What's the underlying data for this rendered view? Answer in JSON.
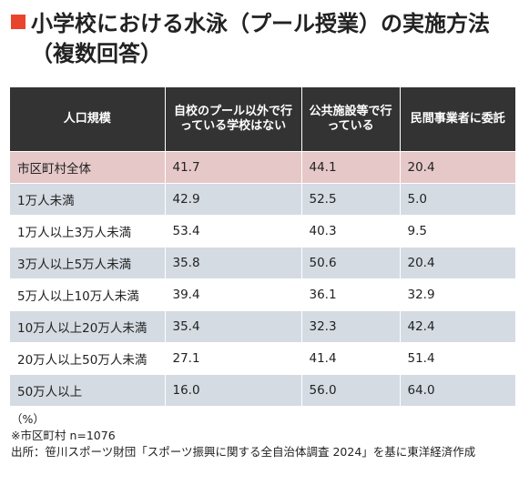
{
  "title": "小学校における水泳（プール授業）の実施方法（複数回答）",
  "columns": [
    "人口規模",
    "自校のプール以外で行っている学校はない",
    "公共施設等で行っている",
    "民間事業者に委託"
  ],
  "rows": [
    {
      "label": "市区町村全体",
      "values": [
        "41.7",
        "44.1",
        "20.4"
      ]
    },
    {
      "label": "1万人未満",
      "values": [
        "42.9",
        "52.5",
        "5.0"
      ]
    },
    {
      "label": "1万人以上3万人未満",
      "values": [
        "53.4",
        "40.3",
        "9.5"
      ]
    },
    {
      "label": "3万人以上5万人未満",
      "values": [
        "35.8",
        "50.6",
        "20.4"
      ]
    },
    {
      "label": "5万人以上10万人未満",
      "values": [
        "39.4",
        "36.1",
        "32.9"
      ]
    },
    {
      "label": "10万人以上20万人未満",
      "values": [
        "35.4",
        "32.3",
        "42.4"
      ]
    },
    {
      "label": "20万人以上50万人未満",
      "values": [
        "27.1",
        "41.4",
        "51.4"
      ]
    },
    {
      "label": "50万人以上",
      "values": [
        "16.0",
        "56.0",
        "64.0"
      ]
    }
  ],
  "notes": {
    "unit": "（%）",
    "sample": "※市区町村 n=1076",
    "source": "出所：笹川スポーツ財団「スポーツ振興に関する全自治体調査 2024」を基に東洋経済作成"
  },
  "colors": {
    "accent": "#e8452c",
    "header_bg": "#333333",
    "total_row_bg": "#e6c8c8",
    "stripe_bg": "#d5dbe3"
  }
}
